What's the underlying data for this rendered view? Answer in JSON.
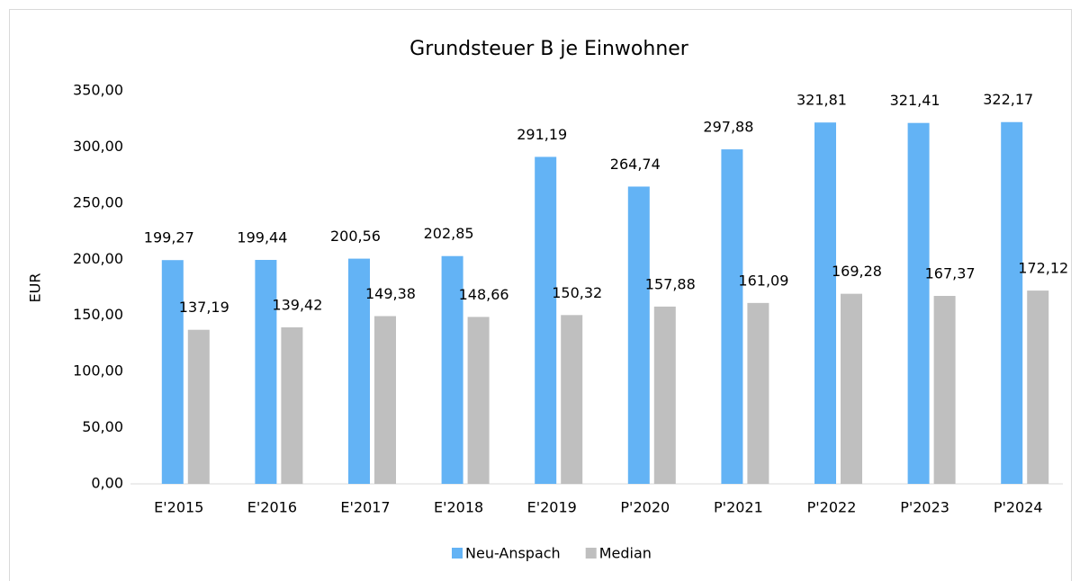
{
  "chart_data": {
    "type": "bar",
    "title": "Grundsteuer B je Einwohner",
    "y_label": "EUR",
    "categories": [
      "E'2015",
      "E'2016",
      "E'2017",
      "E'2018",
      "E'2019",
      "P'2020",
      "P'2021",
      "P'2022",
      "P'2023",
      "P'2024"
    ],
    "series": [
      {
        "name": "Neu-Anspach",
        "color": "#63b3f5",
        "values": [
          199.27,
          199.44,
          200.56,
          202.85,
          291.19,
          264.74,
          297.88,
          321.81,
          321.41,
          322.17
        ],
        "value_labels": [
          "199,27",
          "199,44",
          "200,56",
          "202,85",
          "291,19",
          "264,74",
          "297,88",
          "321,81",
          "321,41",
          "322,17"
        ]
      },
      {
        "name": "Median",
        "color": "#bfbfbf",
        "values": [
          137.19,
          139.42,
          149.38,
          148.66,
          150.32,
          157.88,
          161.09,
          169.28,
          167.37,
          172.12
        ],
        "value_labels": [
          "137,19",
          "139,42",
          "149,38",
          "148,66",
          "150,32",
          "157,88",
          "161,09",
          "169,28",
          "167,37",
          "172,12"
        ]
      }
    ],
    "ylim": [
      0,
      350
    ],
    "yticks": [
      {
        "value": 0,
        "label": "0,00"
      },
      {
        "value": 50,
        "label": "50,00"
      },
      {
        "value": 100,
        "label": "100,00"
      },
      {
        "value": 150,
        "label": "150,00"
      },
      {
        "value": 200,
        "label": "200,00"
      },
      {
        "value": 250,
        "label": "250,00"
      },
      {
        "value": 300,
        "label": "300,00"
      },
      {
        "value": 350,
        "label": "350,00"
      }
    ],
    "grid": false,
    "legend": "bottom"
  }
}
